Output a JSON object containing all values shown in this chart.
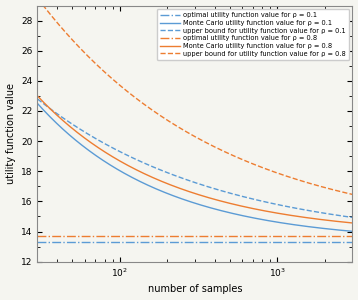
{
  "xlim": [
    30,
    3000
  ],
  "ylim": [
    12,
    29
  ],
  "yticks": [
    12,
    14,
    16,
    18,
    20,
    22,
    24,
    26,
    28
  ],
  "xlabel": "number of samples",
  "ylabel": "utility function value",
  "optimal_rho01": 13.28,
  "optimal_rho08": 13.72,
  "color_blue": "#5b9bd5",
  "color_orange": "#ed7d31",
  "legend_entries": [
    "optimal utility function value for ρ = 0.1",
    "Monte Carlo utility function value for ρ = 0.1",
    "upper bound for utility function value for ρ = 0.1",
    "optimal utility function value for ρ = 0.8",
    "Monte Carlo utility function value for ρ = 0.8",
    "upper bound for utility function value for ρ = 0.8"
  ],
  "n_start": 30,
  "n_end": 3000,
  "n_points": 400,
  "mc01_start": 22.5,
  "mc01_exp": 0.55,
  "mc08_start": 23.0,
  "mc08_exp": 0.52,
  "ub01_start": 22.8,
  "ub01_exp": 0.38,
  "ub08_start": 29.5,
  "ub08_exp": 0.38,
  "figsize": [
    3.58,
    3.0
  ],
  "dpi": 100
}
